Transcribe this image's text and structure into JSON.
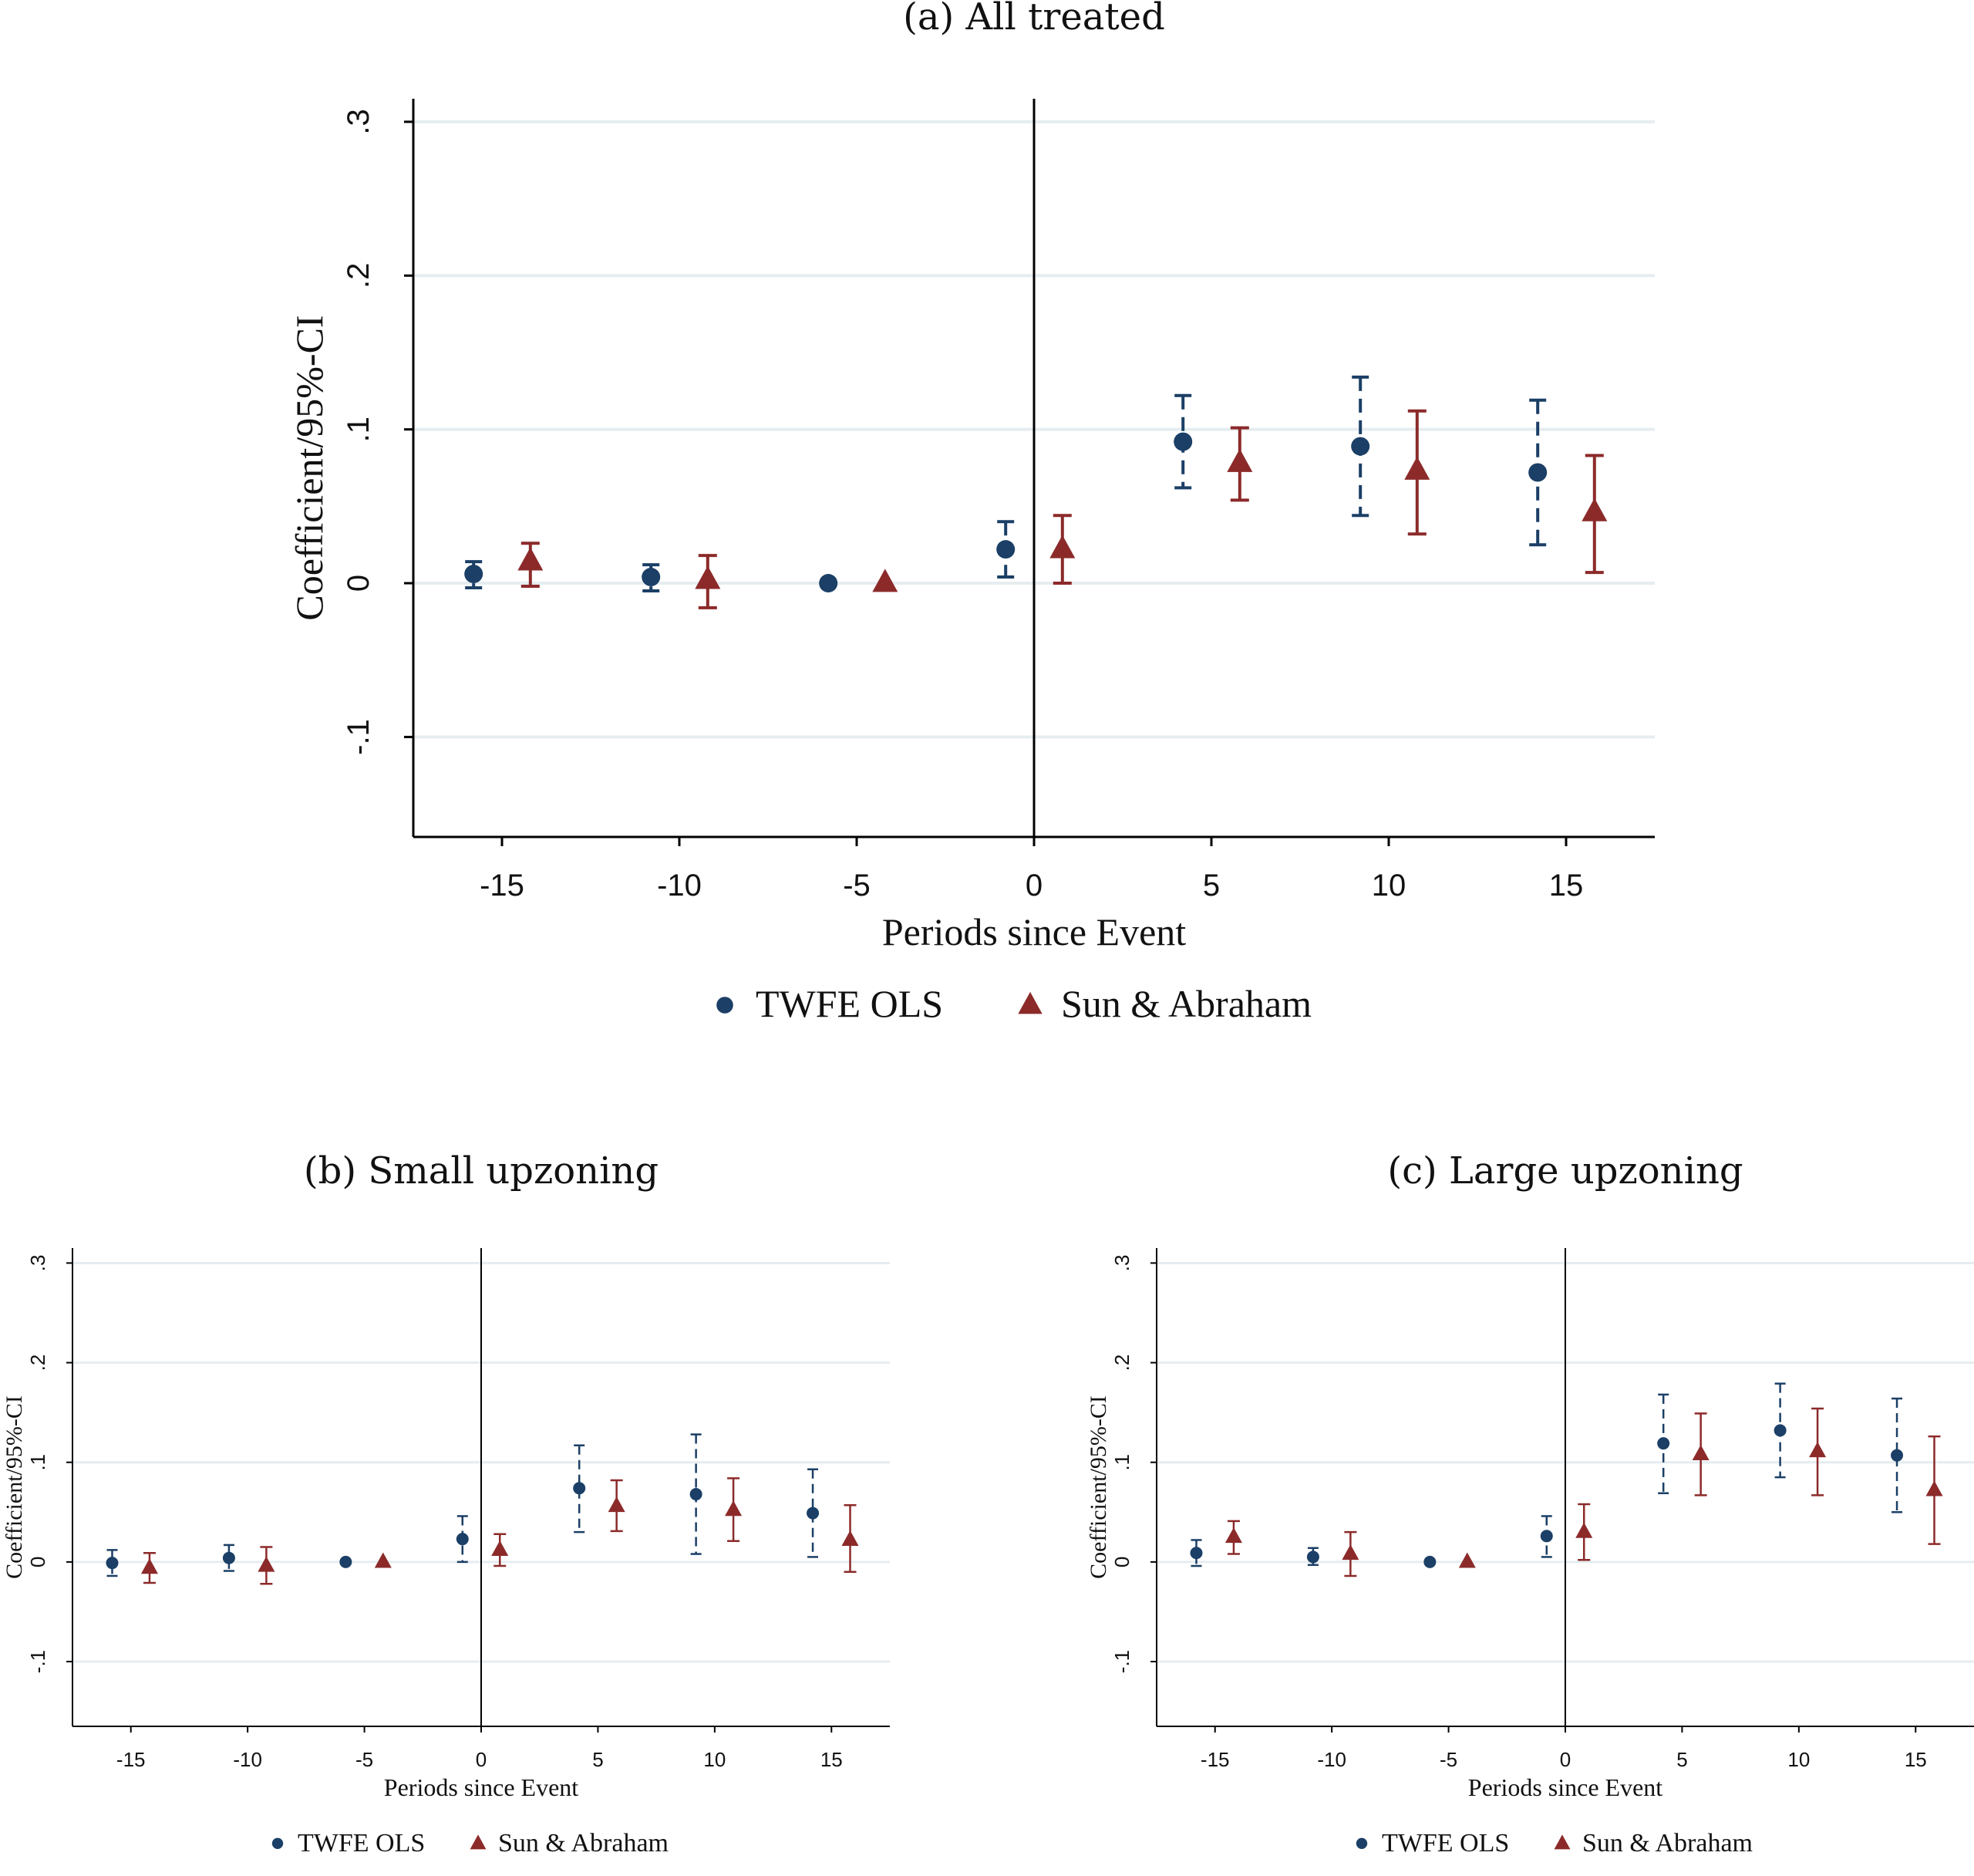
{
  "colors": {
    "twfe": "#1b3f66",
    "sa": "#8c2a2a",
    "grid": "#e6edf0",
    "axis": "#000000"
  },
  "chart_data": [
    {
      "id": "a",
      "type": "scatter",
      "title": "(a) All treated",
      "xlabel": "Periods since Event",
      "ylabel": "Coefficient/95%-CI",
      "xlim": [
        -17.5,
        17.5
      ],
      "ylim": [
        -0.165,
        0.315
      ],
      "xticks": [
        -15,
        -10,
        -5,
        0,
        5,
        10,
        15
      ],
      "xtick_labels": [
        "-15",
        "-10",
        "-5",
        "0",
        "5",
        "10",
        "15"
      ],
      "yticks": [
        -0.1,
        0,
        0.1,
        0.2,
        0.3
      ],
      "ytick_labels": [
        "-.1",
        "0",
        ".1",
        ".2",
        ".3"
      ],
      "grid": true,
      "vline_x": 0,
      "legend_position": "bottom",
      "series": [
        {
          "name": "TWFE OLS",
          "marker": "circle",
          "ci_style": "dashed",
          "x": [
            -15.8,
            -10.8,
            -5.8,
            -0.8,
            4.2,
            9.2,
            14.2
          ],
          "y": [
            0.006,
            0.004,
            0.0,
            0.022,
            0.092,
            0.089,
            0.072
          ],
          "ci_low": [
            -0.003,
            -0.005,
            0.0,
            0.004,
            0.062,
            0.044,
            0.025
          ],
          "ci_high": [
            0.014,
            0.012,
            0.0,
            0.04,
            0.122,
            0.134,
            0.119
          ]
        },
        {
          "name": "Sun & Abraham",
          "marker": "triangle",
          "ci_style": "solid",
          "x": [
            -14.2,
            -9.2,
            -4.2,
            0.8,
            5.8,
            10.8,
            15.8
          ],
          "y": [
            0.014,
            0.002,
            0.0,
            0.022,
            0.078,
            0.073,
            0.046
          ],
          "ci_low": [
            -0.002,
            -0.016,
            0.0,
            0.0,
            0.054,
            0.032,
            0.007
          ],
          "ci_high": [
            0.026,
            0.018,
            0.0,
            0.044,
            0.101,
            0.112,
            0.083
          ]
        }
      ]
    },
    {
      "id": "b",
      "type": "scatter",
      "title": "(b) Small upzoning",
      "xlabel": "Periods since Event",
      "ylabel": "Coefficient/95%-CI",
      "xlim": [
        -17.5,
        17.5
      ],
      "ylim": [
        -0.165,
        0.315
      ],
      "xticks": [
        -15,
        -10,
        -5,
        0,
        5,
        10,
        15
      ],
      "xtick_labels": [
        "-15",
        "-10",
        "-5",
        "0",
        "5",
        "10",
        "15"
      ],
      "yticks": [
        -0.1,
        0,
        0.1,
        0.2,
        0.3
      ],
      "ytick_labels": [
        "-.1",
        "0",
        ".1",
        ".2",
        ".3"
      ],
      "grid": true,
      "vline_x": 0,
      "legend_position": "bottom",
      "series": [
        {
          "name": "TWFE OLS",
          "marker": "circle",
          "ci_style": "dashed",
          "x": [
            -15.8,
            -10.8,
            -5.8,
            -0.8,
            4.2,
            9.2,
            14.2
          ],
          "y": [
            -0.001,
            0.004,
            0.0,
            0.023,
            0.074,
            0.068,
            0.049
          ],
          "ci_low": [
            -0.014,
            -0.009,
            0.0,
            0.0,
            0.03,
            0.008,
            0.005
          ],
          "ci_high": [
            0.012,
            0.017,
            0.0,
            0.046,
            0.117,
            0.128,
            0.093
          ]
        },
        {
          "name": "Sun & Abraham",
          "marker": "triangle",
          "ci_style": "solid",
          "x": [
            -14.2,
            -9.2,
            -4.2,
            0.8,
            5.8,
            10.8,
            15.8
          ],
          "y": [
            -0.006,
            -0.004,
            0.0,
            0.012,
            0.056,
            0.052,
            0.022
          ],
          "ci_low": [
            -0.021,
            -0.022,
            0.0,
            -0.004,
            0.031,
            0.021,
            -0.01
          ],
          "ci_high": [
            0.009,
            0.015,
            0.0,
            0.028,
            0.082,
            0.084,
            0.057
          ]
        }
      ]
    },
    {
      "id": "c",
      "type": "scatter",
      "title": "(c) Large upzoning",
      "xlabel": "Periods since Event",
      "ylabel": "Coefficient/95%-CI",
      "xlim": [
        -17.5,
        17.5
      ],
      "ylim": [
        -0.165,
        0.315
      ],
      "xticks": [
        -15,
        -10,
        -5,
        0,
        5,
        10,
        15
      ],
      "xtick_labels": [
        "-15",
        "-10",
        "-5",
        "0",
        "5",
        "10",
        "15"
      ],
      "yticks": [
        -0.1,
        0,
        0.1,
        0.2,
        0.3
      ],
      "ytick_labels": [
        "-.1",
        "0",
        ".1",
        ".2",
        ".3"
      ],
      "grid": true,
      "vline_x": 0,
      "legend_position": "bottom",
      "series": [
        {
          "name": "TWFE OLS",
          "marker": "circle",
          "ci_style": "dashed",
          "x": [
            -15.8,
            -10.8,
            -5.8,
            -0.8,
            4.2,
            9.2,
            14.2
          ],
          "y": [
            0.009,
            0.005,
            0.0,
            0.026,
            0.119,
            0.132,
            0.107
          ],
          "ci_low": [
            -0.004,
            -0.003,
            0.0,
            0.005,
            0.069,
            0.085,
            0.05
          ],
          "ci_high": [
            0.022,
            0.014,
            0.0,
            0.046,
            0.168,
            0.179,
            0.164
          ]
        },
        {
          "name": "Sun & Abraham",
          "marker": "triangle",
          "ci_style": "solid",
          "x": [
            -14.2,
            -9.2,
            -4.2,
            0.8,
            5.8,
            10.8,
            15.8
          ],
          "y": [
            0.025,
            0.008,
            0.0,
            0.03,
            0.108,
            0.111,
            0.072
          ],
          "ci_low": [
            0.008,
            -0.014,
            0.0,
            0.002,
            0.067,
            0.067,
            0.018
          ],
          "ci_high": [
            0.041,
            0.03,
            0.0,
            0.058,
            0.149,
            0.154,
            0.126
          ]
        }
      ]
    }
  ]
}
